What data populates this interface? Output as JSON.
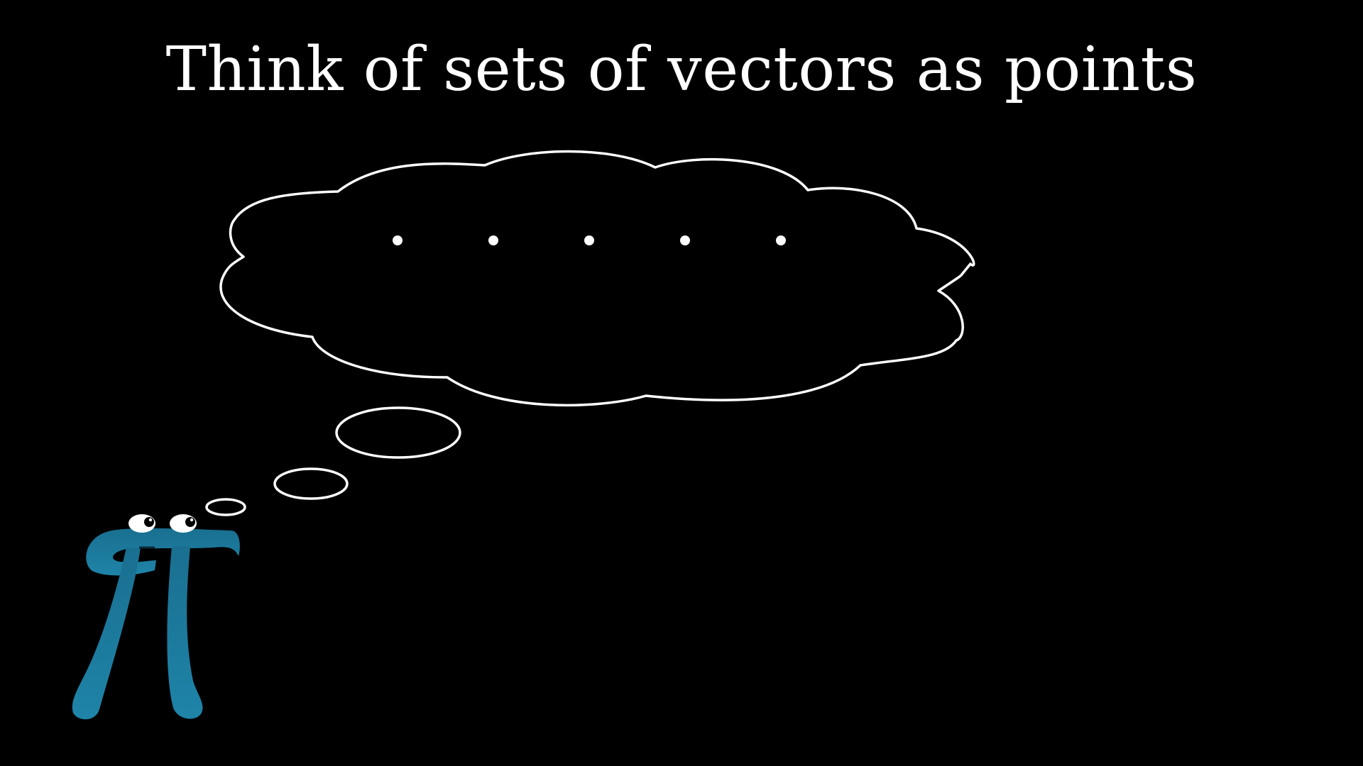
{
  "title": "Think of sets of vectors as points",
  "points_count": 5,
  "colors": {
    "background": "#000000",
    "foreground": "#ffffff",
    "pi_blue": "#1d7a9c",
    "pi_blue_dark": "#15607d"
  },
  "icons": {
    "character": "pi-creature-icon",
    "thought": "thought-bubble-icon"
  }
}
